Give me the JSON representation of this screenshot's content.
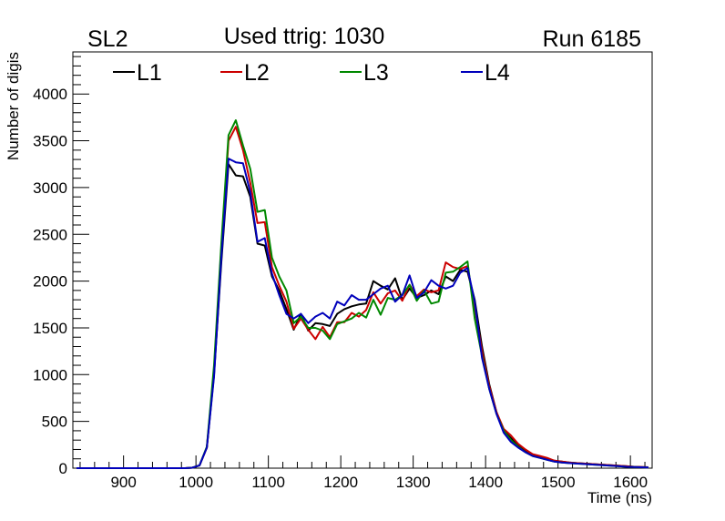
{
  "chart_data": {
    "type": "line",
    "panel_label": "SL2",
    "title": "Used ttrig: 1030",
    "run_label": "Run 6185",
    "xlabel": "Time (ns)",
    "ylabel": "Number of digis",
    "xlim": [
      830,
      1630
    ],
    "ylim": [
      0,
      4450
    ],
    "x_ticks": [
      900,
      1000,
      1100,
      1200,
      1300,
      1400,
      1500,
      1600
    ],
    "x_tick_labels": [
      "900",
      "1000",
      "1100",
      "1200",
      "1300",
      "1400",
      "1500",
      "1600"
    ],
    "y_ticks": [
      0,
      500,
      1000,
      1500,
      2000,
      2500,
      3000,
      3500,
      4000
    ],
    "y_tick_labels": [
      "0",
      "500",
      "1000",
      "1500",
      "2000",
      "2500",
      "3000",
      "3500",
      "4000"
    ],
    "x": [
      835,
      845,
      855,
      865,
      875,
      885,
      895,
      905,
      915,
      925,
      935,
      945,
      955,
      965,
      975,
      985,
      995,
      1005,
      1015,
      1025,
      1035,
      1045,
      1055,
      1065,
      1075,
      1085,
      1095,
      1105,
      1115,
      1125,
      1135,
      1145,
      1155,
      1165,
      1175,
      1185,
      1195,
      1205,
      1215,
      1225,
      1235,
      1245,
      1255,
      1265,
      1275,
      1285,
      1295,
      1305,
      1315,
      1325,
      1335,
      1345,
      1355,
      1365,
      1375,
      1385,
      1395,
      1405,
      1415,
      1425,
      1435,
      1445,
      1455,
      1465,
      1475,
      1485,
      1495,
      1505,
      1515,
      1525,
      1535,
      1545,
      1555,
      1565,
      1575,
      1585,
      1595,
      1605,
      1615,
      1625
    ],
    "series": [
      {
        "name": "L1",
        "color": "#000000",
        "values": [
          0,
          0,
          0,
          0,
          0,
          0,
          0,
          0,
          0,
          0,
          0,
          0,
          0,
          0,
          0,
          0,
          5,
          30,
          220,
          1000,
          2200,
          3250,
          3130,
          3120,
          2900,
          2400,
          2380,
          2050,
          1900,
          1700,
          1480,
          1650,
          1470,
          1550,
          1540,
          1520,
          1650,
          1700,
          1730,
          1750,
          1760,
          2000,
          1950,
          1910,
          2030,
          1800,
          1920,
          1820,
          1850,
          1900,
          1860,
          2050,
          2000,
          2120,
          2100,
          1800,
          1300,
          900,
          600,
          400,
          320,
          240,
          180,
          140,
          120,
          100,
          80,
          70,
          60,
          55,
          50,
          45,
          40,
          35,
          30,
          25,
          20,
          15,
          12,
          10
        ]
      },
      {
        "name": "L2",
        "color": "#cc0000",
        "values": [
          0,
          0,
          0,
          0,
          0,
          0,
          0,
          0,
          0,
          0,
          0,
          0,
          0,
          0,
          0,
          0,
          5,
          30,
          220,
          1050,
          2350,
          3500,
          3650,
          3400,
          3050,
          2620,
          2630,
          2150,
          1950,
          1780,
          1490,
          1600,
          1480,
          1380,
          1510,
          1400,
          1560,
          1560,
          1660,
          1620,
          1690,
          1880,
          1760,
          1870,
          1900,
          1790,
          1960,
          1840,
          1910,
          1880,
          1900,
          2200,
          2150,
          2130,
          2160,
          1720,
          1250,
          880,
          600,
          420,
          350,
          260,
          200,
          150,
          130,
          110,
          80,
          70,
          60,
          55,
          50,
          45,
          40,
          35,
          30,
          25,
          20,
          15,
          12,
          10
        ]
      },
      {
        "name": "L3",
        "color": "#008800",
        "values": [
          0,
          0,
          0,
          0,
          0,
          0,
          0,
          0,
          0,
          0,
          0,
          0,
          0,
          0,
          0,
          0,
          5,
          30,
          230,
          1100,
          2400,
          3560,
          3720,
          3450,
          3200,
          2740,
          2760,
          2250,
          2050,
          1900,
          1550,
          1620,
          1500,
          1500,
          1470,
          1380,
          1540,
          1570,
          1600,
          1660,
          1610,
          1800,
          1640,
          1820,
          1800,
          1850,
          1960,
          1790,
          1900,
          1760,
          1780,
          2090,
          2100,
          2150,
          2210,
          1600,
          1200,
          850,
          580,
          400,
          300,
          230,
          170,
          130,
          110,
          90,
          70,
          60,
          55,
          50,
          45,
          40,
          35,
          30,
          25,
          20,
          15,
          12,
          10,
          8
        ]
      },
      {
        "name": "L4",
        "color": "#0000bb",
        "values": [
          0,
          0,
          0,
          0,
          0,
          0,
          0,
          0,
          0,
          0,
          0,
          0,
          0,
          0,
          0,
          0,
          5,
          30,
          220,
          980,
          2250,
          3310,
          3270,
          3260,
          2950,
          2420,
          2460,
          2080,
          1850,
          1650,
          1600,
          1650,
          1550,
          1620,
          1660,
          1600,
          1780,
          1740,
          1850,
          1800,
          1800,
          1860,
          1920,
          1950,
          1780,
          1850,
          2060,
          1820,
          1880,
          2010,
          1950,
          1920,
          1950,
          2090,
          2140,
          1780,
          1180,
          850,
          580,
          380,
          280,
          220,
          170,
          130,
          110,
          90,
          70,
          60,
          55,
          50,
          45,
          40,
          35,
          30,
          25,
          20,
          15,
          12,
          10,
          8
        ]
      }
    ]
  }
}
